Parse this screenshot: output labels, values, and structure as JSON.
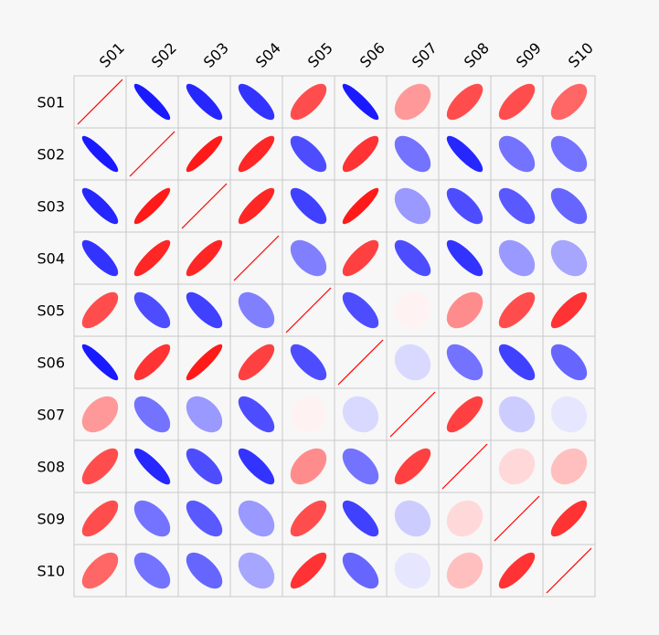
{
  "chart_data": {
    "type": "heatmap",
    "title": "",
    "xlabel": "",
    "ylabel": "",
    "labels": [
      "S01",
      "S02",
      "S03",
      "S04",
      "S05",
      "S06",
      "S07",
      "S08",
      "S09",
      "S10"
    ],
    "value_range": [
      -1,
      1
    ],
    "colors": {
      "positive": "#ff0000",
      "negative": "#0000ff",
      "zero": "#ffffff",
      "grid": "#c8c8c8",
      "background": "#f7f7f7"
    },
    "diagonal_style": "line",
    "matrix": [
      [
        1.0,
        -0.9,
        -0.85,
        -0.8,
        0.7,
        -0.9,
        0.4,
        0.7,
        0.7,
        0.6
      ],
      [
        -0.9,
        1.0,
        0.9,
        0.85,
        -0.7,
        0.8,
        -0.55,
        -0.85,
        -0.55,
        -0.55
      ],
      [
        -0.85,
        0.9,
        1.0,
        0.85,
        -0.75,
        0.9,
        -0.4,
        -0.7,
        -0.65,
        -0.6
      ],
      [
        -0.8,
        0.85,
        0.85,
        1.0,
        -0.5,
        0.75,
        -0.7,
        -0.8,
        -0.4,
        -0.35
      ],
      [
        0.7,
        -0.7,
        -0.75,
        -0.5,
        1.0,
        -0.7,
        0.05,
        0.45,
        0.7,
        0.8
      ],
      [
        -0.9,
        0.8,
        0.9,
        0.75,
        -0.7,
        1.0,
        -0.15,
        -0.55,
        -0.75,
        -0.6
      ],
      [
        0.4,
        -0.55,
        -0.4,
        -0.7,
        0.05,
        -0.15,
        1.0,
        0.75,
        -0.2,
        -0.1
      ],
      [
        0.7,
        -0.85,
        -0.7,
        -0.8,
        0.45,
        -0.55,
        0.75,
        1.0,
        0.15,
        0.25
      ],
      [
        0.7,
        -0.55,
        -0.65,
        -0.4,
        0.7,
        -0.75,
        -0.2,
        0.15,
        1.0,
        0.8
      ],
      [
        0.6,
        -0.55,
        -0.6,
        -0.35,
        0.8,
        -0.6,
        -0.1,
        0.25,
        0.8,
        1.0
      ]
    ]
  }
}
